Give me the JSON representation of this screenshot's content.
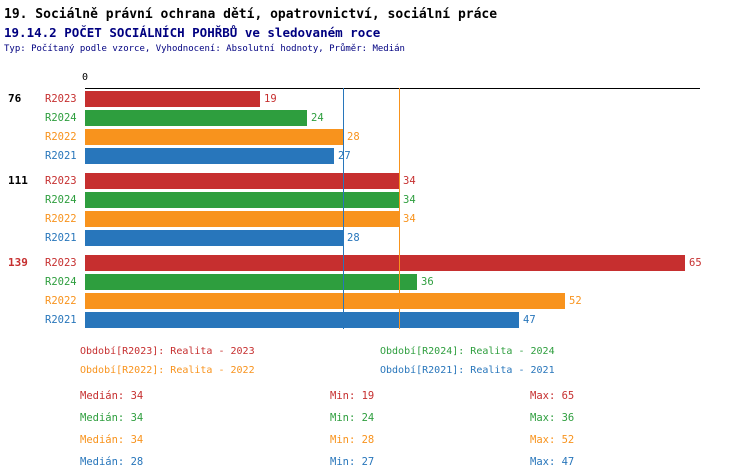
{
  "title": "19. Sociálně právní ochrana dětí, opatrovnictví, sociální práce",
  "subtitle": "19.14.2 POČET SOCIÁLNÍCH POHŘBŮ ve sledovaném roce",
  "meta": "Typ: Počítaný podle vzorce, Vyhodnocení: Absolutní hodnoty, Průměr: Medián",
  "colors": {
    "R2023": "#C62F2F",
    "R2024": "#2E9E3E",
    "R2022": "#F8931D",
    "R2021": "#2876BB",
    "title_accent": "#000080",
    "axis": "#000000"
  },
  "chart_data": {
    "type": "bar",
    "orientation": "horizontal",
    "title": "19.14.2 POČET SOCIÁLNÍCH POHŘBŮ ve sledovaném roce",
    "xlabel": "",
    "ylabel": "",
    "grid": false,
    "legend_position": "bottom",
    "axis": {
      "origin_label": "0",
      "xmin": 0,
      "xmax": 65
    },
    "series_order": [
      "R2023",
      "R2024",
      "R2022",
      "R2021"
    ],
    "reference_lines": [
      {
        "series": "R2021",
        "value": 28,
        "color": "#2876BB"
      },
      {
        "series": "R2022",
        "value": 34,
        "color": "#F8931D"
      }
    ],
    "groups": [
      {
        "label": "76",
        "label_color": "#000000",
        "bars": [
          {
            "series": "R2023",
            "value": 19
          },
          {
            "series": "R2024",
            "value": 24
          },
          {
            "series": "R2022",
            "value": 28
          },
          {
            "series": "R2021",
            "value": 27
          }
        ]
      },
      {
        "label": "111",
        "label_color": "#000000",
        "bars": [
          {
            "series": "R2023",
            "value": 34
          },
          {
            "series": "R2024",
            "value": 34
          },
          {
            "series": "R2022",
            "value": 34
          },
          {
            "series": "R2021",
            "value": 28
          }
        ]
      },
      {
        "label": "139",
        "label_color": "#C62F2F",
        "bars": [
          {
            "series": "R2023",
            "value": 65
          },
          {
            "series": "R2024",
            "value": 36
          },
          {
            "series": "R2022",
            "value": 52
          },
          {
            "series": "R2021",
            "value": 47
          }
        ]
      }
    ]
  },
  "legend": [
    {
      "series": "R2023",
      "label": "Období[R2023]: Realita - 2023"
    },
    {
      "series": "R2024",
      "label": "Období[R2024]: Realita - 2024"
    },
    {
      "series": "R2022",
      "label": "Období[R2022]: Realita - 2022"
    },
    {
      "series": "R2021",
      "label": "Období[R2021]: Realita - 2021"
    }
  ],
  "stats": [
    {
      "series": "R2023",
      "median": "Medián: 34",
      "min": "Min: 19",
      "max": "Max: 65"
    },
    {
      "series": "R2024",
      "median": "Medián: 34",
      "min": "Min: 24",
      "max": "Max: 36"
    },
    {
      "series": "R2022",
      "median": "Medián: 34",
      "min": "Min: 28",
      "max": "Max: 52"
    },
    {
      "series": "R2021",
      "median": "Medián: 28",
      "min": "Min: 27",
      "max": "Max: 47"
    }
  ]
}
